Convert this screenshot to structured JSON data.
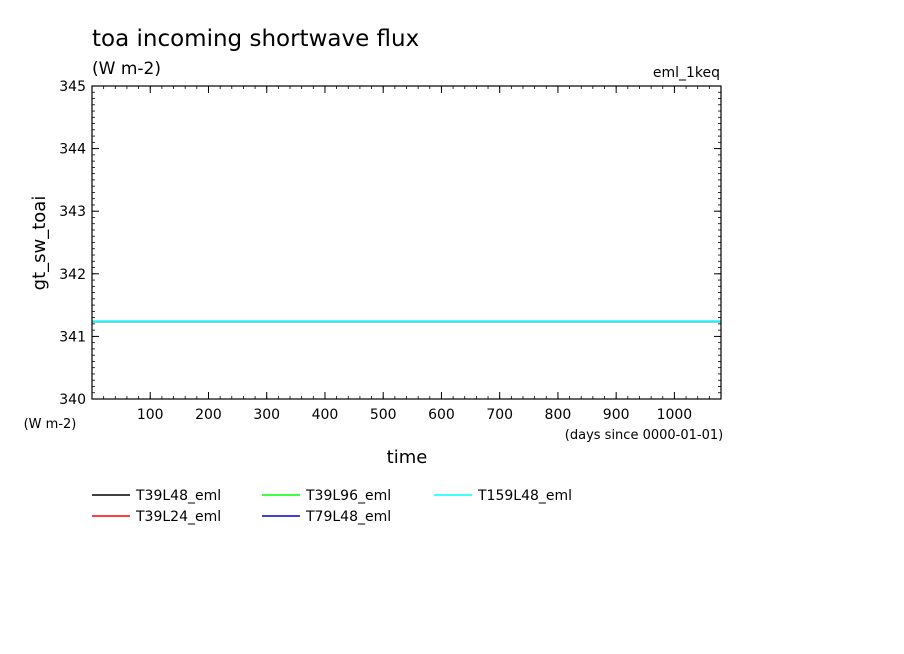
{
  "chart_data": {
    "type": "line",
    "title": "toa incoming shortwave flux",
    "units": "(W m-2)",
    "experiment": "eml_1keq",
    "ylabel": "gt_sw_toai",
    "yunits": "(W m-2)",
    "xlabel": "time",
    "xunits": "(days since 0000-01-01)",
    "xlim": [
      0,
      1080
    ],
    "ylim": [
      340,
      345
    ],
    "xticks": [
      100,
      200,
      300,
      400,
      500,
      600,
      700,
      800,
      900,
      1000
    ],
    "xtick_labels": [
      "100",
      "200",
      "300",
      "400",
      "500",
      "600",
      "700",
      "800",
      "900",
      "1000"
    ],
    "yticks": [
      340,
      341,
      342,
      343,
      344,
      345
    ],
    "ytick_labels": [
      "340",
      "341",
      "342",
      "343",
      "344",
      "345"
    ],
    "grid": false,
    "legend_position": "bottom",
    "series": [
      {
        "name": "T39L48_eml",
        "color": "#000000",
        "x": [
          0,
          1080
        ],
        "y": [
          341.24,
          341.24
        ]
      },
      {
        "name": "T39L24_eml",
        "color": "#ff0000",
        "x": [
          0,
          1080
        ],
        "y": [
          341.24,
          341.24
        ]
      },
      {
        "name": "T39L96_eml",
        "color": "#00ff00",
        "x": [
          0,
          1080
        ],
        "y": [
          341.24,
          341.24
        ]
      },
      {
        "name": "T79L48_eml",
        "color": "#0000cc",
        "x": [
          0,
          1080
        ],
        "y": [
          341.24,
          341.24
        ]
      },
      {
        "name": "T159L48_eml",
        "color": "#00ffff",
        "x": [
          0,
          1080
        ],
        "y": [
          341.24,
          341.24
        ]
      }
    ]
  }
}
